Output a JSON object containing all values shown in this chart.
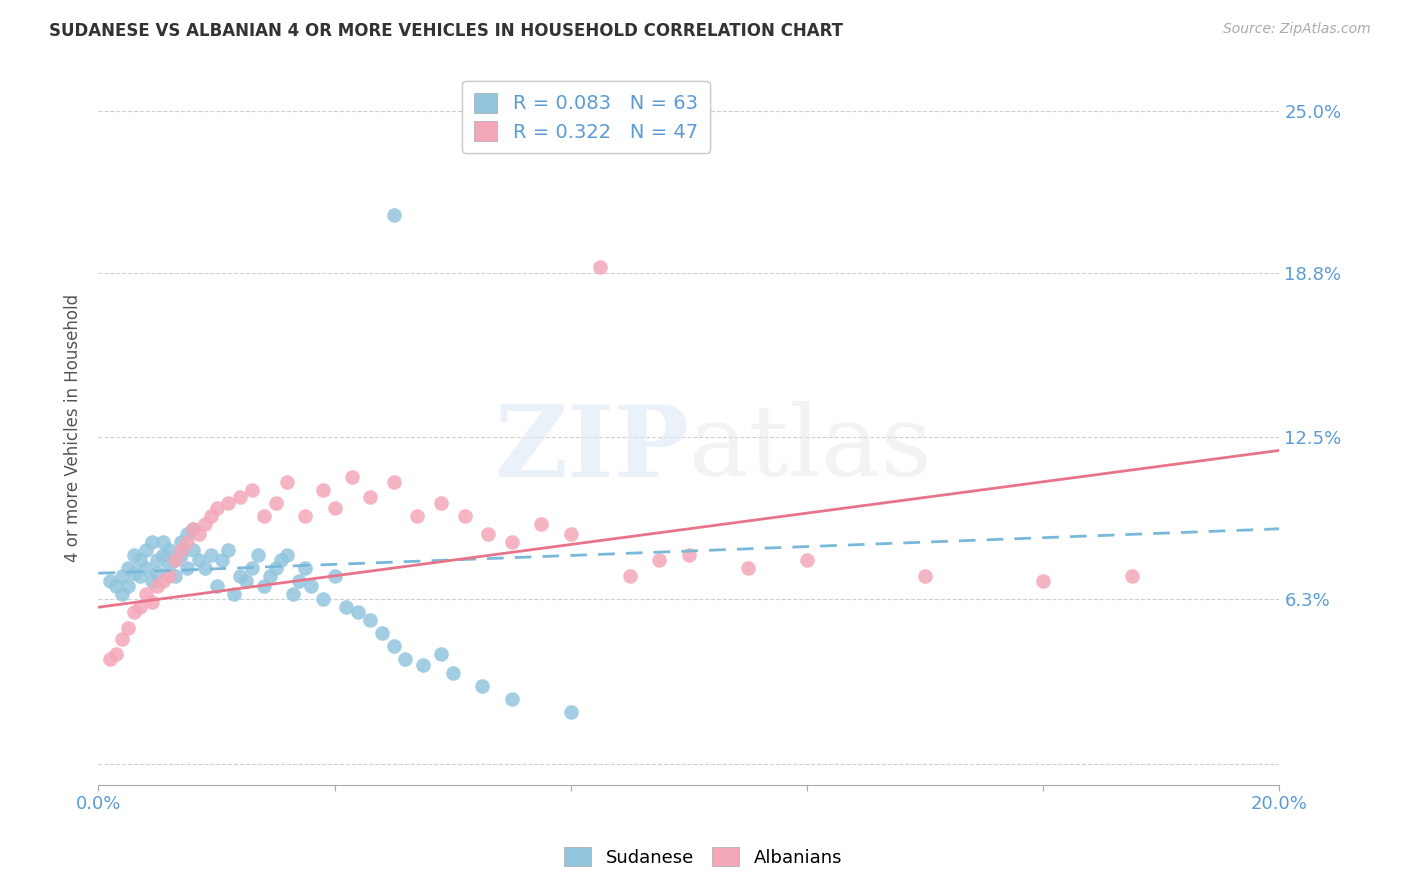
{
  "title": "SUDANESE VS ALBANIAN 4 OR MORE VEHICLES IN HOUSEHOLD CORRELATION CHART",
  "source": "Source: ZipAtlas.com",
  "ylabel": "4 or more Vehicles in Household",
  "xlim": [
    0.0,
    0.2
  ],
  "ylim": [
    -0.008,
    0.265
  ],
  "yticks": [
    0.0,
    0.063,
    0.125,
    0.188,
    0.25
  ],
  "ytick_labels": [
    "",
    "6.3%",
    "12.5%",
    "18.8%",
    "25.0%"
  ],
  "xticks": [
    0.0,
    0.04,
    0.08,
    0.12,
    0.16,
    0.2
  ],
  "xtick_labels": [
    "0.0%",
    "",
    "",
    "",
    "",
    "20.0%"
  ],
  "sudanese_R": 0.083,
  "sudanese_N": 63,
  "albanian_R": 0.322,
  "albanian_N": 47,
  "sudanese_color": "#92c5de",
  "albanian_color": "#f4a7b9",
  "sudanese_line_color": "#7ab8d9",
  "albanian_line_color": "#e8748a",
  "watermark_zip": "ZIP",
  "watermark_atlas": "atlas",
  "background_color": "#ffffff",
  "sudanese_x": [
    0.002,
    0.003,
    0.004,
    0.004,
    0.005,
    0.005,
    0.006,
    0.006,
    0.007,
    0.007,
    0.008,
    0.008,
    0.009,
    0.009,
    0.01,
    0.01,
    0.011,
    0.011,
    0.012,
    0.012,
    0.013,
    0.013,
    0.014,
    0.014,
    0.015,
    0.015,
    0.016,
    0.016,
    0.017,
    0.018,
    0.019,
    0.02,
    0.021,
    0.022,
    0.023,
    0.024,
    0.025,
    0.026,
    0.027,
    0.028,
    0.029,
    0.03,
    0.031,
    0.032,
    0.033,
    0.034,
    0.035,
    0.036,
    0.038,
    0.04,
    0.042,
    0.044,
    0.046,
    0.048,
    0.05,
    0.052,
    0.055,
    0.058,
    0.06,
    0.065,
    0.07,
    0.08,
    0.05
  ],
  "sudanese_y": [
    0.07,
    0.068,
    0.072,
    0.065,
    0.075,
    0.068,
    0.08,
    0.073,
    0.072,
    0.078,
    0.082,
    0.075,
    0.085,
    0.07,
    0.078,
    0.073,
    0.08,
    0.085,
    0.076,
    0.082,
    0.078,
    0.072,
    0.085,
    0.08,
    0.088,
    0.075,
    0.082,
    0.09,
    0.078,
    0.075,
    0.08,
    0.068,
    0.078,
    0.082,
    0.065,
    0.072,
    0.07,
    0.075,
    0.08,
    0.068,
    0.072,
    0.075,
    0.078,
    0.08,
    0.065,
    0.07,
    0.075,
    0.068,
    0.063,
    0.072,
    0.06,
    0.058,
    0.055,
    0.05,
    0.045,
    0.04,
    0.038,
    0.042,
    0.035,
    0.03,
    0.025,
    0.02,
    0.21
  ],
  "albanian_x": [
    0.002,
    0.003,
    0.004,
    0.005,
    0.006,
    0.007,
    0.008,
    0.009,
    0.01,
    0.011,
    0.012,
    0.013,
    0.014,
    0.015,
    0.016,
    0.017,
    0.018,
    0.019,
    0.02,
    0.022,
    0.024,
    0.026,
    0.028,
    0.03,
    0.032,
    0.035,
    0.038,
    0.04,
    0.043,
    0.046,
    0.05,
    0.054,
    0.058,
    0.062,
    0.066,
    0.07,
    0.075,
    0.08,
    0.085,
    0.09,
    0.095,
    0.1,
    0.11,
    0.12,
    0.14,
    0.16,
    0.175
  ],
  "albanian_y": [
    0.04,
    0.042,
    0.048,
    0.052,
    0.058,
    0.06,
    0.065,
    0.062,
    0.068,
    0.07,
    0.072,
    0.078,
    0.082,
    0.085,
    0.09,
    0.088,
    0.092,
    0.095,
    0.098,
    0.1,
    0.102,
    0.105,
    0.095,
    0.1,
    0.108,
    0.095,
    0.105,
    0.098,
    0.11,
    0.102,
    0.108,
    0.095,
    0.1,
    0.095,
    0.088,
    0.085,
    0.092,
    0.088,
    0.19,
    0.072,
    0.078,
    0.08,
    0.075,
    0.078,
    0.072,
    0.07,
    0.072
  ],
  "sue_line_x0": 0.0,
  "sue_line_y0": 0.073,
  "sue_line_x1": 0.2,
  "sue_line_y1": 0.09,
  "alb_line_x0": 0.0,
  "alb_line_y0": 0.06,
  "alb_line_x1": 0.2,
  "alb_line_y1": 0.12
}
